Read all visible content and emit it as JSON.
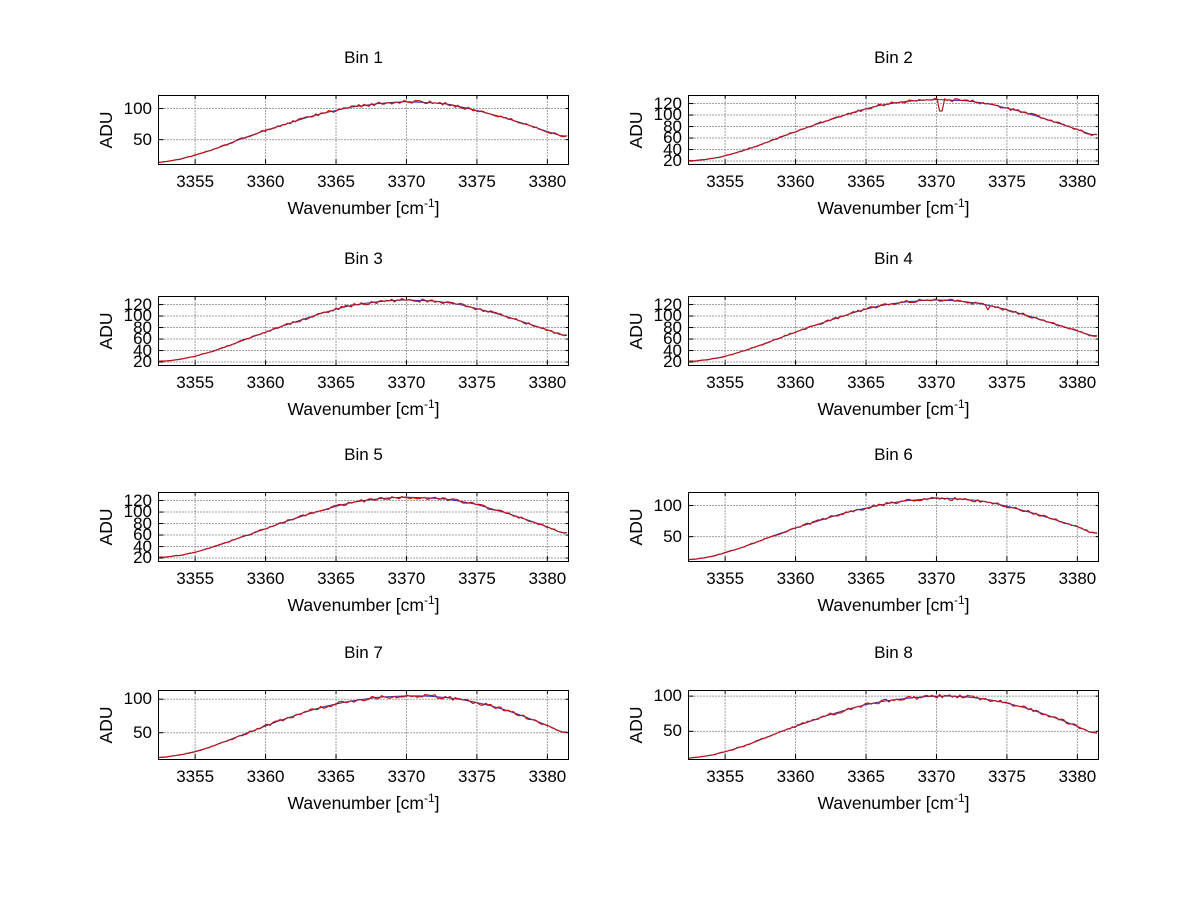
{
  "labels": {
    "ylabel": "ADU",
    "xlabel_main": "Wavenumber [cm",
    "xlabel_sup": "-1",
    "xlabel_close": "]"
  },
  "colors": {
    "data_line": "#bf1414",
    "fit_line": "#2b2bb4",
    "grid": "#444444",
    "axis": "#000000"
  },
  "chart_data": [
    {
      "type": "line",
      "title": "Bin 1",
      "xlabel": "Wavenumber [cm^-1]",
      "ylabel": "ADU",
      "xlim": [
        3352.4,
        3381.5
      ],
      "ylim": [
        10,
        121
      ],
      "xticks": [
        3355,
        3360,
        3365,
        3370,
        3375,
        3380
      ],
      "yticks": [
        50,
        100
      ],
      "x": [
        3352,
        3353,
        3354,
        3355,
        3356,
        3357,
        3358,
        3359,
        3360,
        3361,
        3362,
        3363,
        3364,
        3365,
        3366,
        3367,
        3368,
        3369,
        3370,
        3371,
        3372,
        3373,
        3374,
        3375,
        3376,
        3377,
        3378,
        3379,
        3380,
        3381
      ],
      "y": [
        12,
        15,
        19,
        25,
        32,
        40,
        49,
        57,
        65,
        72,
        79,
        86,
        92,
        97,
        102,
        105,
        108,
        110,
        111,
        110,
        109,
        107,
        102,
        97,
        91,
        85,
        78,
        71,
        63,
        56
      ]
    },
    {
      "type": "line",
      "title": "Bin 2",
      "xlabel": "Wavenumber [cm^-1]",
      "ylabel": "ADU",
      "xlim": [
        3352.4,
        3381.5
      ],
      "ylim": [
        14,
        134
      ],
      "xticks": [
        3355,
        3360,
        3365,
        3370,
        3375,
        3380
      ],
      "yticks": [
        20,
        40,
        60,
        80,
        100,
        120
      ],
      "x": [
        3352,
        3353,
        3354,
        3355,
        3356,
        3357,
        3358,
        3359,
        3360,
        3361,
        3362,
        3363,
        3364,
        3365,
        3366,
        3367,
        3368,
        3369,
        3370,
        3371,
        3372,
        3373,
        3374,
        3375,
        3376,
        3377,
        3378,
        3379,
        3380,
        3381
      ],
      "y": [
        20,
        21,
        24,
        29,
        36,
        44,
        53,
        62,
        71,
        80,
        88,
        96,
        104,
        111,
        117,
        121,
        124,
        126,
        127,
        126,
        125,
        122,
        118,
        112,
        106,
        99,
        91,
        83,
        75,
        66
      ],
      "dip": {
        "x": 3370.3,
        "y": 107
      }
    },
    {
      "type": "line",
      "title": "Bin 3",
      "xlabel": "Wavenumber [cm^-1]",
      "ylabel": "ADU",
      "xlim": [
        3352.4,
        3381.5
      ],
      "ylim": [
        14,
        134
      ],
      "xticks": [
        3355,
        3360,
        3365,
        3370,
        3375,
        3380
      ],
      "yticks": [
        20,
        40,
        60,
        80,
        100,
        120
      ],
      "x": [
        3352,
        3353,
        3354,
        3355,
        3356,
        3357,
        3358,
        3359,
        3360,
        3361,
        3362,
        3363,
        3364,
        3365,
        3366,
        3367,
        3368,
        3369,
        3370,
        3371,
        3372,
        3373,
        3374,
        3375,
        3376,
        3377,
        3378,
        3379,
        3380,
        3381
      ],
      "y": [
        21,
        22,
        25,
        30,
        37,
        45,
        54,
        63,
        72,
        81,
        89,
        97,
        105,
        112,
        118,
        122,
        125,
        127,
        128,
        127,
        126,
        123,
        119,
        113,
        107,
        100,
        92,
        84,
        76,
        67
      ]
    },
    {
      "type": "line",
      "title": "Bin 4",
      "xlabel": "Wavenumber [cm^-1]",
      "ylabel": "ADU",
      "xlim": [
        3352.4,
        3381.5
      ],
      "ylim": [
        14,
        134
      ],
      "xticks": [
        3355,
        3360,
        3365,
        3370,
        3375,
        3380
      ],
      "yticks": [
        20,
        40,
        60,
        80,
        100,
        120
      ],
      "x": [
        3352,
        3353,
        3354,
        3355,
        3356,
        3357,
        3358,
        3359,
        3360,
        3361,
        3362,
        3363,
        3364,
        3365,
        3366,
        3367,
        3368,
        3369,
        3370,
        3371,
        3372,
        3373,
        3374,
        3375,
        3376,
        3377,
        3378,
        3379,
        3380,
        3381
      ],
      "y": [
        21,
        22,
        25,
        30,
        37,
        45,
        54,
        63,
        72,
        81,
        89,
        97,
        105,
        112,
        118,
        122,
        125,
        127,
        128,
        127,
        125,
        122,
        117,
        111,
        104,
        97,
        89,
        82,
        74,
        66
      ],
      "dip": {
        "x": 3373.6,
        "y": 111
      }
    },
    {
      "type": "line",
      "title": "Bin 5",
      "xlabel": "Wavenumber [cm^-1]",
      "ylabel": "ADU",
      "xlim": [
        3352.4,
        3381.5
      ],
      "ylim": [
        14,
        134
      ],
      "xticks": [
        3355,
        3360,
        3365,
        3370,
        3375,
        3380
      ],
      "yticks": [
        20,
        40,
        60,
        80,
        100,
        120
      ],
      "x": [
        3352,
        3353,
        3354,
        3355,
        3356,
        3357,
        3358,
        3359,
        3360,
        3361,
        3362,
        3363,
        3364,
        3365,
        3366,
        3367,
        3368,
        3369,
        3370,
        3371,
        3372,
        3373,
        3374,
        3375,
        3376,
        3377,
        3378,
        3379,
        3380,
        3381
      ],
      "y": [
        21,
        22,
        25,
        30,
        37,
        45,
        54,
        62,
        71,
        80,
        88,
        96,
        103,
        110,
        116,
        120,
        123,
        125,
        126,
        125,
        124,
        122,
        118,
        113,
        106,
        99,
        91,
        83,
        74,
        64
      ]
    },
    {
      "type": "line",
      "title": "Bin 6",
      "xlabel": "Wavenumber [cm^-1]",
      "ylabel": "ADU",
      "xlim": [
        3352.4,
        3381.5
      ],
      "ylim": [
        10,
        121
      ],
      "xticks": [
        3355,
        3360,
        3365,
        3370,
        3375,
        3380
      ],
      "yticks": [
        50,
        100
      ],
      "x": [
        3352,
        3353,
        3354,
        3355,
        3356,
        3357,
        3358,
        3359,
        3360,
        3361,
        3362,
        3363,
        3364,
        3365,
        3366,
        3367,
        3368,
        3369,
        3370,
        3371,
        3372,
        3373,
        3374,
        3375,
        3376,
        3377,
        3378,
        3379,
        3380,
        3381
      ],
      "y": [
        12,
        14,
        18,
        24,
        31,
        39,
        48,
        56,
        64,
        71,
        78,
        85,
        91,
        96,
        101,
        105,
        108,
        110,
        112,
        111,
        110,
        108,
        104,
        99,
        93,
        87,
        80,
        73,
        66,
        56
      ]
    },
    {
      "type": "line",
      "title": "Bin 7",
      "xlabel": "Wavenumber [cm^-1]",
      "ylabel": "ADU",
      "xlim": [
        3352.4,
        3381.5
      ],
      "ylim": [
        10,
        113
      ],
      "xticks": [
        3355,
        3360,
        3365,
        3370,
        3375,
        3380
      ],
      "yticks": [
        50,
        100
      ],
      "x": [
        3352,
        3353,
        3354,
        3355,
        3356,
        3357,
        3358,
        3359,
        3360,
        3361,
        3362,
        3363,
        3364,
        3365,
        3366,
        3367,
        3368,
        3369,
        3370,
        3371,
        3372,
        3373,
        3374,
        3375,
        3376,
        3377,
        3378,
        3379,
        3380,
        3381
      ],
      "y": [
        12,
        14,
        17,
        22,
        28,
        36,
        44,
        52,
        60,
        68,
        75,
        82,
        88,
        93,
        97,
        100,
        103,
        104,
        105,
        105,
        104,
        102,
        99,
        95,
        90,
        84,
        77,
        69,
        61,
        51
      ]
    },
    {
      "type": "line",
      "title": "Bin 8",
      "xlabel": "Wavenumber [cm^-1]",
      "ylabel": "ADU",
      "xlim": [
        3352.4,
        3381.5
      ],
      "ylim": [
        10,
        108
      ],
      "xticks": [
        3355,
        3360,
        3365,
        3370,
        3375,
        3380
      ],
      "yticks": [
        50,
        100
      ],
      "x": [
        3352,
        3353,
        3354,
        3355,
        3356,
        3357,
        3358,
        3359,
        3360,
        3361,
        3362,
        3363,
        3364,
        3365,
        3366,
        3367,
        3368,
        3369,
        3370,
        3371,
        3372,
        3373,
        3374,
        3375,
        3376,
        3377,
        3378,
        3379,
        3380,
        3381
      ],
      "y": [
        11,
        13,
        16,
        21,
        27,
        34,
        42,
        50,
        57,
        64,
        71,
        77,
        83,
        88,
        92,
        95,
        97,
        99,
        100,
        100,
        99,
        97,
        94,
        90,
        85,
        79,
        72,
        65,
        57,
        48
      ]
    }
  ]
}
